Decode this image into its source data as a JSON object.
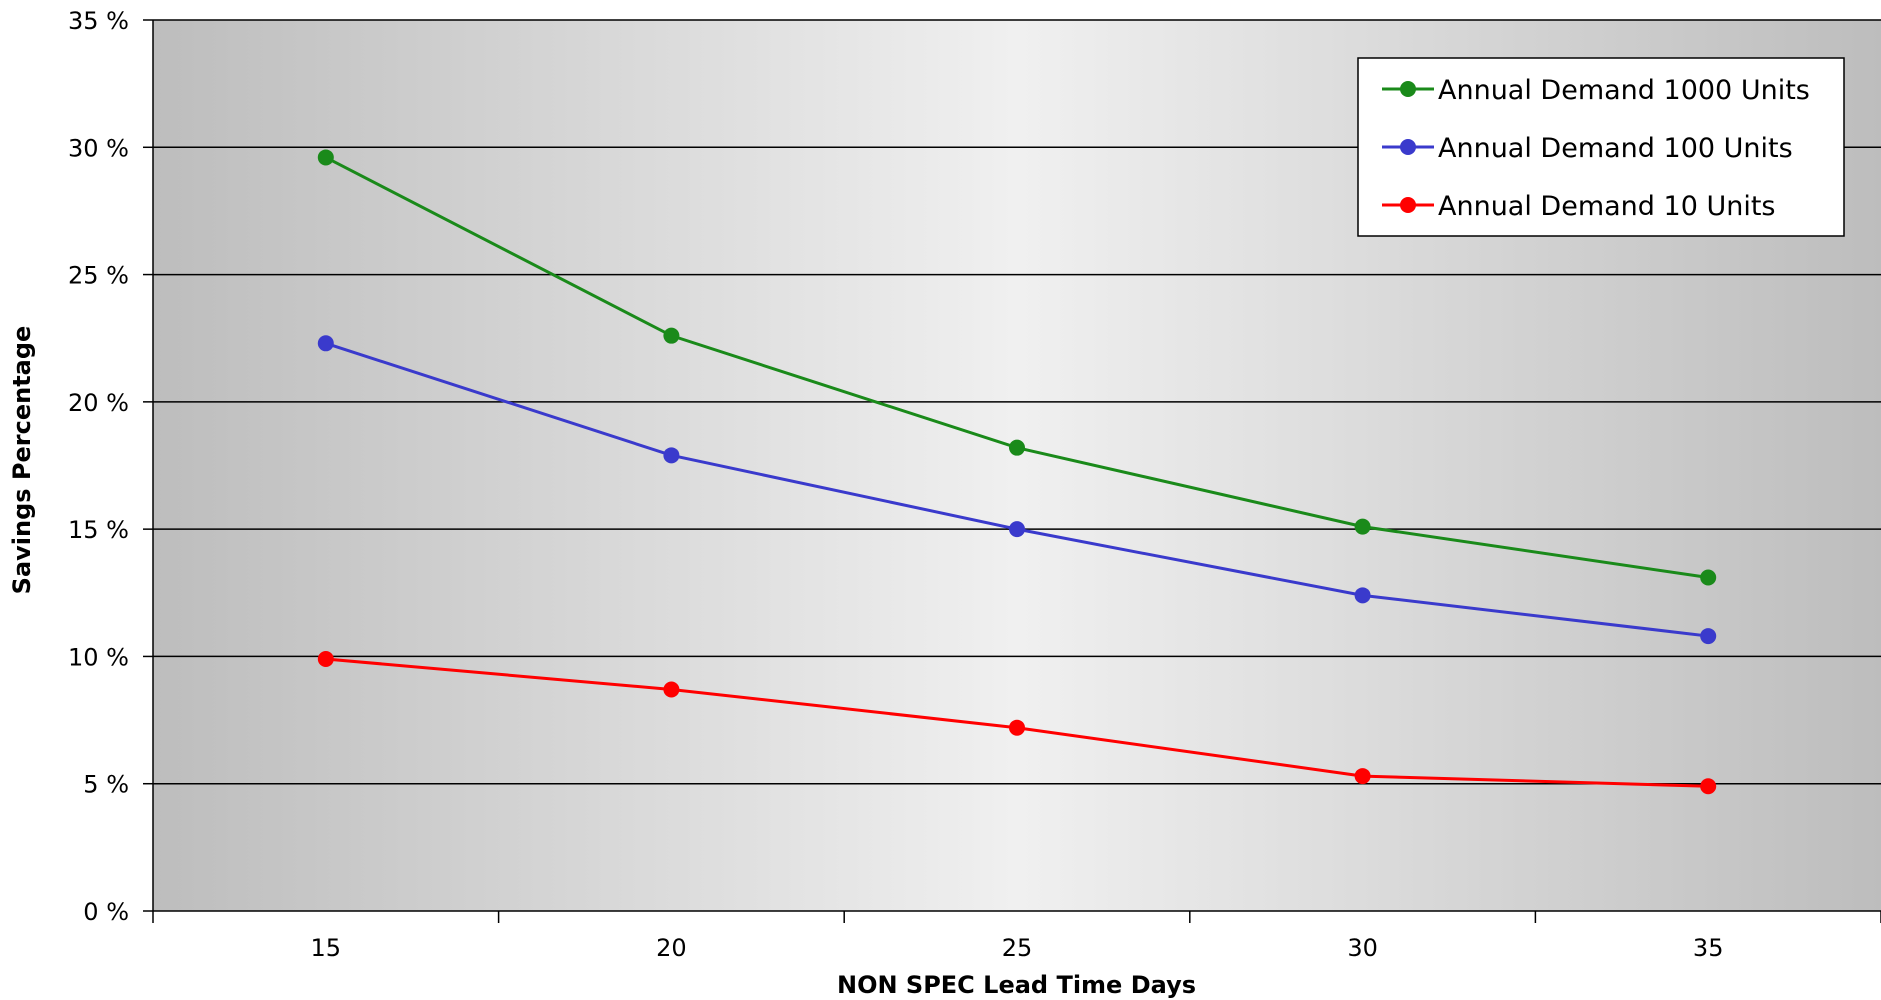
{
  "chart_data": {
    "type": "line",
    "x": [
      15,
      20,
      25,
      30,
      35
    ],
    "xlabel": "NON SPEC Lead Time Days",
    "ylabel": "Savings Percentage",
    "xlim": [
      12.5,
      37.5
    ],
    "ylim": [
      0,
      35
    ],
    "x_ticks": [
      15,
      20,
      25,
      30,
      35
    ],
    "y_ticks": [
      0,
      5,
      10,
      15,
      20,
      25,
      30,
      35
    ],
    "y_tick_labels": [
      "0 %",
      "5 %",
      "10 %",
      "15 %",
      "20 %",
      "25 %",
      "30 %",
      "35 %"
    ],
    "grid": "horizontal",
    "legend_position": "top-right",
    "series": [
      {
        "name": "Annual Demand 1000 Units",
        "color": "#1a8a1a",
        "values": [
          29.6,
          22.6,
          18.2,
          15.1,
          13.1
        ]
      },
      {
        "name": "Annual Demand 100 Units",
        "color": "#3a3acc",
        "values": [
          22.3,
          17.9,
          15.0,
          12.4,
          10.8
        ]
      },
      {
        "name": "Annual Demand 10 Units",
        "color": "#ff0000",
        "values": [
          9.9,
          8.7,
          7.2,
          5.3,
          4.9
        ]
      }
    ]
  }
}
